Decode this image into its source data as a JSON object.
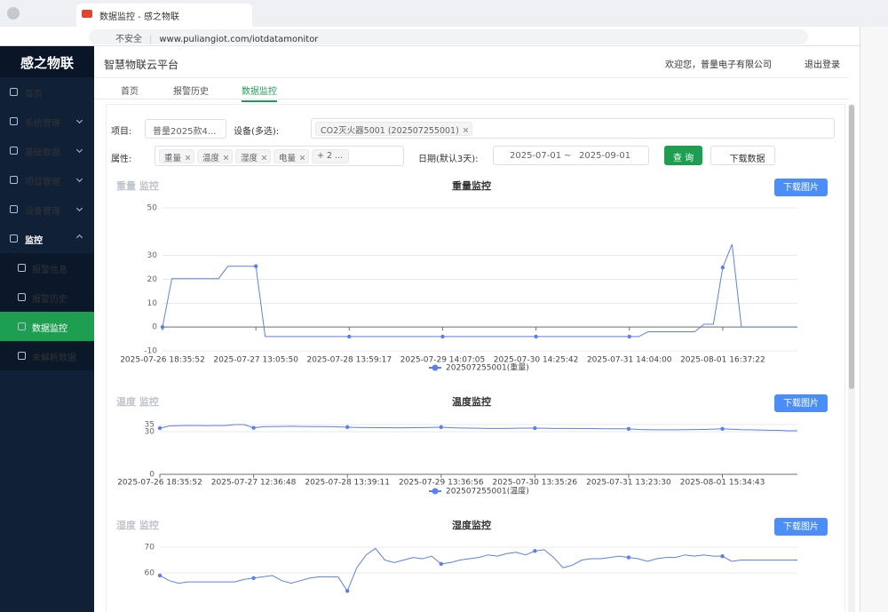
{
  "browser": {
    "tab_title": "数据监控 - 感之物联",
    "security": "不安全",
    "url": "www.puliangiot.com/iotdatamonitor"
  },
  "sidebar": {
    "brand": "感之物联",
    "menu": [
      "首页",
      "系统管理",
      "基础数据",
      "项目管理",
      "设备管理",
      "监控"
    ],
    "submenu": [
      "报警信息",
      "报警历史",
      "数据监控",
      "未解析数据"
    ]
  },
  "header": {
    "title": "智慧物联云平台",
    "welcome": "欢迎您，普量电子有限公司",
    "logout": "退出登录"
  },
  "tabs": [
    "首页",
    "报警历史",
    "数据监控"
  ],
  "filters": {
    "project_label": "项目:",
    "project_value": "普量2025款4...",
    "device_label": "设备(多选):",
    "device_value": "CO2灭火器5001 (202507255001)",
    "attr_label": "属性:",
    "attrs": [
      "重量",
      "温度",
      "湿度",
      "电量"
    ],
    "attr_more": "+ 2 ...",
    "date_label": "日期(默认3天):",
    "date_start": "2025-07-01",
    "date_sep": "~",
    "date_end": "2025-09-01",
    "query": "查 询",
    "download": "下载数据"
  },
  "chart_data": [
    {
      "type": "line",
      "side_label": "重量 监控",
      "title": "重量监控",
      "button": "下载图片",
      "categories": [
        "2025-07-26 18:35:52",
        null,
        null,
        null,
        null,
        null,
        null,
        null,
        null,
        null,
        "2025-07-27 13:05:50",
        null,
        null,
        null,
        null,
        null,
        null,
        null,
        null,
        null,
        "2025-07-28 13:59:17",
        null,
        null,
        null,
        null,
        null,
        null,
        null,
        null,
        null,
        "2025-07-29 14:07:05",
        null,
        null,
        null,
        null,
        null,
        null,
        null,
        null,
        null,
        "2025-07-30 14:25:42",
        null,
        null,
        null,
        null,
        null,
        null,
        null,
        null,
        null,
        "2025-07-31 14:04:00",
        null,
        null,
        null,
        null,
        null,
        null,
        null,
        null,
        null,
        "2025-08-01 16:37:22",
        null,
        null,
        null,
        null,
        null,
        null,
        null,
        null
      ],
      "series": [
        {
          "name": "202507255001(重量)",
          "color": "#5b7ff2",
          "values": [
            0,
            20.3,
            20.3,
            20.3,
            20.3,
            20.3,
            20.3,
            25.5,
            25.5,
            25.5,
            25.5,
            -4,
            -4,
            -4,
            -4,
            -4,
            -4,
            -4,
            -4,
            -4,
            -4,
            -4,
            -4,
            -4,
            -4,
            -4,
            -4,
            -4,
            -4,
            -4,
            -4,
            -4,
            -4,
            -4,
            -4,
            -4,
            -4,
            -4,
            -4,
            -4,
            -4,
            -4,
            -4,
            -4,
            -4,
            -4,
            -4,
            -4,
            -4,
            -4,
            -4,
            -4,
            -2,
            -2,
            -2,
            -2,
            -2,
            -2,
            1.2,
            1.2,
            25,
            34.7,
            0,
            0,
            0,
            0,
            0,
            0,
            0
          ]
        }
      ],
      "ylim": [
        -10,
        50
      ],
      "yticks": [
        -10,
        0,
        10,
        20,
        30,
        50
      ],
      "grid": true
    },
    {
      "type": "line",
      "side_label": "温度 监控",
      "title": "温度监控",
      "button": "下载图片",
      "categories": [
        "2025-07-26 18:35:52",
        null,
        null,
        null,
        null,
        null,
        null,
        null,
        null,
        null,
        "2025-07-27 12:36:48",
        null,
        null,
        null,
        null,
        null,
        null,
        null,
        null,
        null,
        "2025-07-28 13:39:11",
        null,
        null,
        null,
        null,
        null,
        null,
        null,
        null,
        null,
        "2025-07-29 13:36:56",
        null,
        null,
        null,
        null,
        null,
        null,
        null,
        null,
        null,
        "2025-07-30 13:35:26",
        null,
        null,
        null,
        null,
        null,
        null,
        null,
        null,
        null,
        "2025-07-31 13:23:30",
        null,
        null,
        null,
        null,
        null,
        null,
        null,
        null,
        null,
        "2025-08-01 15:34:43",
        null,
        null,
        null,
        null,
        null,
        null,
        null,
        null
      ],
      "series": [
        {
          "name": "202507255001(温度)",
          "color": "#5b7ff2",
          "values": [
            32.5,
            34,
            34.2,
            34.3,
            34.3,
            34.2,
            34.3,
            34.3,
            35,
            35,
            32.7,
            33.5,
            33.6,
            33.7,
            33.8,
            33.7,
            33.6,
            33.6,
            33.5,
            33.4,
            33.2,
            33,
            32.9,
            32.8,
            32.8,
            32.7,
            32.7,
            32.8,
            32.9,
            33,
            33.2,
            32.8,
            32.6,
            32.5,
            32.4,
            32.3,
            32.3,
            32.3,
            32.4,
            32.5,
            32.5,
            32.4,
            32.3,
            32.3,
            32.3,
            32.2,
            32.2,
            32.1,
            32,
            32,
            32,
            31.6,
            31.4,
            31.3,
            31.3,
            31.3,
            31.4,
            31.5,
            31.6,
            31.8,
            32,
            31.7,
            31.4,
            31.3,
            31.2,
            31,
            30.9,
            30.6,
            30.7
          ]
        }
      ],
      "ylim": [
        0,
        35
      ],
      "yticks": [
        0,
        30,
        35
      ],
      "grid": true
    },
    {
      "type": "line",
      "side_label": "湿度 监控",
      "title": "湿度监控",
      "button": "下载图片",
      "series": [
        {
          "color": "#5b7ff2",
          "values": [
            59,
            57,
            56,
            56.5,
            56.5,
            56.5,
            56.5,
            56.5,
            56.5,
            57.5,
            58,
            58.5,
            59,
            57,
            56,
            57,
            58,
            58.5,
            58.5,
            58.5,
            53,
            62,
            67,
            69.5,
            65,
            64,
            65,
            66,
            65.5,
            66.5,
            63.5,
            64,
            65,
            65.5,
            66,
            67,
            66.5,
            67.5,
            68,
            67,
            68.5,
            69,
            66,
            62,
            63,
            65,
            65.5,
            65.5,
            66,
            66.5,
            66,
            65.5,
            64.5,
            65.5,
            66,
            66,
            67,
            66.5,
            67,
            66.5,
            66.5,
            64.5,
            65,
            65,
            65,
            65,
            65,
            65,
            65
          ]
        }
      ],
      "ylim": [
        40,
        70
      ],
      "yticks": [
        60,
        70
      ],
      "grid": true
    }
  ]
}
